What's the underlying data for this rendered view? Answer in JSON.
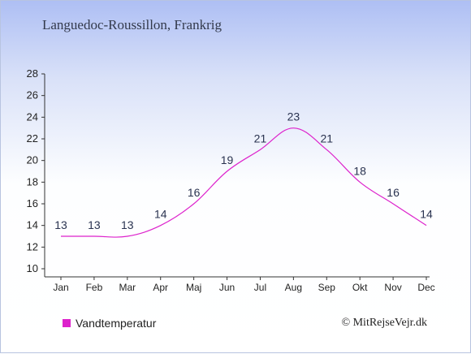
{
  "page": {
    "credit": "© MitRejseVejr.dk"
  },
  "chart_data": {
    "type": "line",
    "title": "Languedoc-Roussillon, Frankrig",
    "categories": [
      "Jan",
      "Feb",
      "Mar",
      "Apr",
      "Maj",
      "Jun",
      "Jul",
      "Aug",
      "Sep",
      "Okt",
      "Nov",
      "Dec"
    ],
    "series": [
      {
        "name": "Vandtemperatur",
        "values": [
          13,
          13,
          13,
          14,
          16,
          19,
          21,
          23,
          21,
          18,
          16,
          14
        ],
        "color": "#dd22cc"
      }
    ],
    "y_ticks": [
      10,
      12,
      14,
      16,
      18,
      20,
      22,
      24,
      26,
      28
    ],
    "ylim": [
      10,
      28
    ],
    "legend_position": "bottom-left",
    "grid": false
  }
}
